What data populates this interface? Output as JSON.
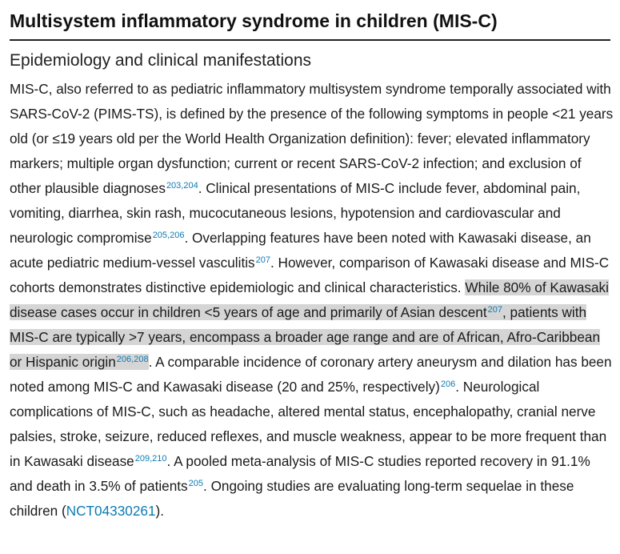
{
  "header": {
    "title": "Multisystem inflammatory syndrome in children (MIS-C)"
  },
  "section": {
    "title": "Epidemiology and clinical manifestations"
  },
  "paragraph": {
    "s1": "MIS-C, also referred to as pediatric inflammatory multisystem syndrome temporally associated with SARS-CoV-2 (PIMS-TS), is defined by the presence of the following symptoms in people <21 years old (or ≤19 years old per the World Health Organization definition): fever; elevated inflammatory markers; multiple organ dysfunction; current or recent SARS-CoV-2 infection; and exclusion of other plausible diagnoses",
    "ref1": "203,204",
    "s2": ". Clinical presentations of MIS-C include fever, abdominal pain, vomiting, diarrhea, skin rash, mucocutaneous lesions, hypotension and cardiovascular and neurologic compromise",
    "ref2": "205,206",
    "s3": ". Overlapping features have been noted with Kawasaki disease, an acute pediatric medium-vessel vasculitis",
    "ref3": "207",
    "s4": ". However, comparison of Kawasaki disease and MIS-C cohorts demonstrates distinctive epidemiologic and clinical characteristics.",
    "h1": "While 80% of Kawasaki disease cases occur in children <5 years of age and primarily of Asian descent",
    "ref4": "207",
    "h2": ", patients with MIS-C are typically >7 years, encompass a broader age range and are of African, Afro-Caribbean or Hispanic origin",
    "ref5": "206,208",
    "s5": ". A comparable incidence of coronary artery aneurysm and dilation has been noted among MIS-C and Kawasaki disease (20 and 25%, respectively)",
    "ref6": "206",
    "s6": ". Neurological complications of MIS-C, such as headache, altered mental status, encephalopathy, cranial nerve palsies, stroke, seizure, reduced reflexes, and muscle weakness, appear to be more frequent than in Kawasaki disease",
    "ref7": "209,210",
    "s7": ". A pooled meta-analysis of MIS-C studies reported recovery in 91.1% and death in 3.5% of patients",
    "ref8": "205",
    "s8": ". Ongoing studies are evaluating long-term sequelae in these children (",
    "trial_link": "NCT04330261",
    "s9": ")."
  }
}
